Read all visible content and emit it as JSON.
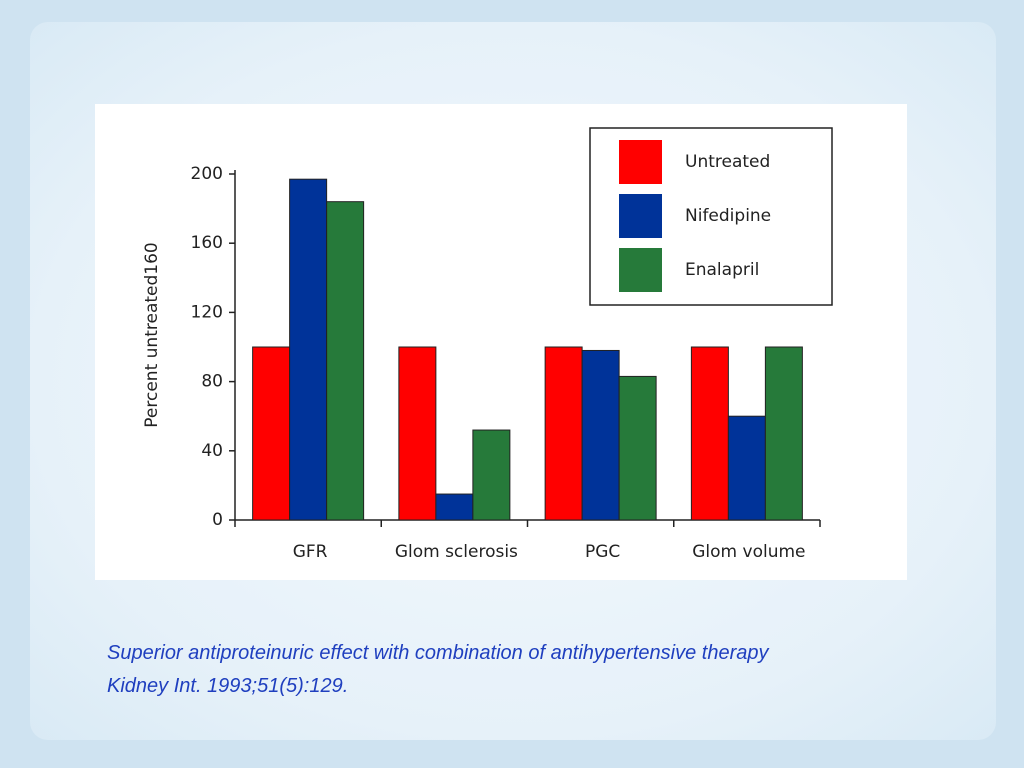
{
  "chart_data": {
    "type": "bar",
    "y_label": "Percent untreated160",
    "categories": [
      "GFR",
      "Glom sclerosis",
      "PGC",
      "Glom volume"
    ],
    "series": [
      {
        "name": "Untreated",
        "color": "#ff0000",
        "values": [
          100,
          100,
          100,
          100
        ]
      },
      {
        "name": "Nifedipine",
        "color": "#003399",
        "values": [
          197,
          15,
          98,
          60
        ]
      },
      {
        "name": "Enalapril",
        "color": "#267a3a",
        "values": [
          184,
          52,
          83,
          100
        ]
      }
    ],
    "ylim": [
      0,
      200
    ],
    "yticks": [
      0,
      40,
      80,
      120,
      160,
      200
    ],
    "grid": false,
    "legend": "top-right"
  },
  "caption": [
    "Superior antiproteinuric effect with combination of antihypertensive therapy",
    "Kidney Int. 1993;51(5):129."
  ]
}
